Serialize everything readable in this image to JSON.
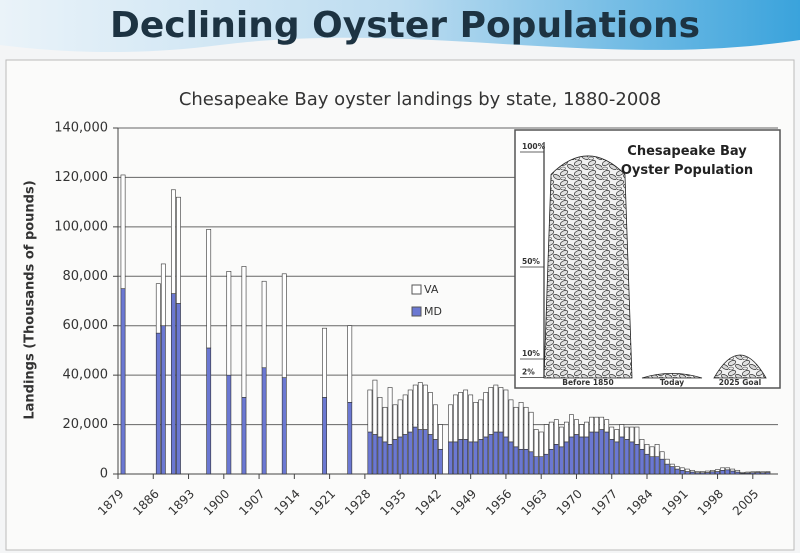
{
  "header": {
    "title": "Declining Oyster Populations"
  },
  "chart_data": [
    {
      "type": "bar",
      "stacked": true,
      "title": "Chesapeake Bay oyster landings by state, 1880-2008",
      "y_label": "Landings (Thousands of pounds)",
      "x": [
        1880,
        1887,
        1888,
        1890,
        1891,
        1897,
        1901,
        1904,
        1908,
        1912,
        1920,
        1925,
        1929,
        1930,
        1931,
        1932,
        1933,
        1934,
        1935,
        1936,
        1937,
        1938,
        1939,
        1940,
        1941,
        1942,
        1943,
        1945,
        1946,
        1947,
        1948,
        1949,
        1950,
        1951,
        1952,
        1953,
        1954,
        1955,
        1956,
        1957,
        1958,
        1959,
        1960,
        1961,
        1962,
        1963,
        1964,
        1965,
        1966,
        1967,
        1968,
        1969,
        1970,
        1971,
        1972,
        1973,
        1974,
        1975,
        1976,
        1977,
        1978,
        1979,
        1980,
        1981,
        1982,
        1983,
        1984,
        1985,
        1986,
        1987,
        1988,
        1989,
        1990,
        1991,
        1992,
        1993,
        1994,
        1995,
        1996,
        1997,
        1998,
        1999,
        2000,
        2001,
        2002,
        2003,
        2004,
        2005,
        2006,
        2007,
        2008
      ],
      "series": [
        {
          "name": "MD",
          "color": "#6b78d2",
          "values": [
            75000,
            57000,
            60000,
            73000,
            69000,
            51000,
            40000,
            31000,
            43000,
            39000,
            31000,
            29000,
            17000,
            16000,
            15000,
            13000,
            12000,
            14000,
            15000,
            16000,
            17000,
            19000,
            18000,
            18000,
            16000,
            14000,
            10000,
            13000,
            13000,
            14000,
            14000,
            13000,
            13000,
            14000,
            15000,
            16000,
            17000,
            17000,
            15000,
            13000,
            11000,
            10000,
            10000,
            9000,
            7000,
            7000,
            8000,
            10000,
            12000,
            11000,
            13000,
            15000,
            16000,
            15000,
            15000,
            17000,
            17000,
            18000,
            17000,
            14000,
            13000,
            15000,
            14000,
            13000,
            12000,
            10000,
            8000,
            7000,
            7000,
            6000,
            4000,
            3000,
            2000,
            1500,
            1000,
            800,
            500,
            500,
            600,
            900,
            1000,
            1500,
            1700,
            1200,
            800,
            300,
            400,
            500,
            600,
            500,
            600
          ]
        },
        {
          "name": "VA",
          "color": "#ffffff",
          "values": [
            46000,
            20000,
            25000,
            42000,
            43000,
            48000,
            42000,
            53000,
            35000,
            42000,
            28000,
            31000,
            17000,
            22000,
            16000,
            14000,
            23000,
            14000,
            15000,
            16000,
            17000,
            17000,
            19000,
            18000,
            17000,
            14000,
            10000,
            15000,
            19000,
            19000,
            20000,
            19000,
            16000,
            16000,
            18000,
            19000,
            19000,
            18000,
            19000,
            17000,
            16000,
            19000,
            17000,
            16000,
            11000,
            10000,
            12000,
            11000,
            10000,
            8000,
            8000,
            9000,
            6000,
            5000,
            6000,
            6000,
            6000,
            5000,
            5000,
            5000,
            5000,
            5000,
            5000,
            6000,
            7000,
            4000,
            4000,
            4000,
            5000,
            3000,
            2000,
            1000,
            1000,
            1000,
            1000,
            700,
            500,
            500,
            600,
            600,
            800,
            1000,
            800,
            800,
            700,
            400,
            400,
            400,
            400,
            400,
            400
          ]
        }
      ],
      "xlim": [
        1879,
        2010
      ],
      "xticks": [
        1879,
        1886,
        1893,
        1900,
        1907,
        1914,
        1921,
        1928,
        1935,
        1942,
        1949,
        1956,
        1963,
        1970,
        1977,
        1984,
        1991,
        1998,
        2005
      ],
      "ylim": [
        0,
        140000
      ],
      "yticks": [
        0,
        {
          "value": 20000,
          "label": "20,000"
        },
        {
          "value": 40000,
          "label": "40,000"
        },
        {
          "value": 60000,
          "label": "60,000"
        },
        {
          "value": 80000,
          "label": "80,000"
        },
        {
          "value": 100000,
          "label": "100,000"
        },
        {
          "value": 120000,
          "label": "120,000"
        },
        {
          "value": 140000,
          "label": "140,000"
        }
      ],
      "grid": true,
      "legend": "center"
    },
    {
      "type": "pictograph",
      "title": "Chesapeake Bay Oyster Population",
      "categories": [
        "Before 1850",
        "Today",
        "2025 Goal"
      ],
      "values": [
        100,
        2,
        10
      ],
      "ylim": [
        0,
        100
      ],
      "yticks": [
        {
          "value": 100,
          "label": "100%"
        },
        {
          "value": 50,
          "label": "50%"
        },
        {
          "value": 10,
          "label": "10%"
        },
        {
          "value": 2,
          "label": "2%"
        }
      ]
    }
  ]
}
